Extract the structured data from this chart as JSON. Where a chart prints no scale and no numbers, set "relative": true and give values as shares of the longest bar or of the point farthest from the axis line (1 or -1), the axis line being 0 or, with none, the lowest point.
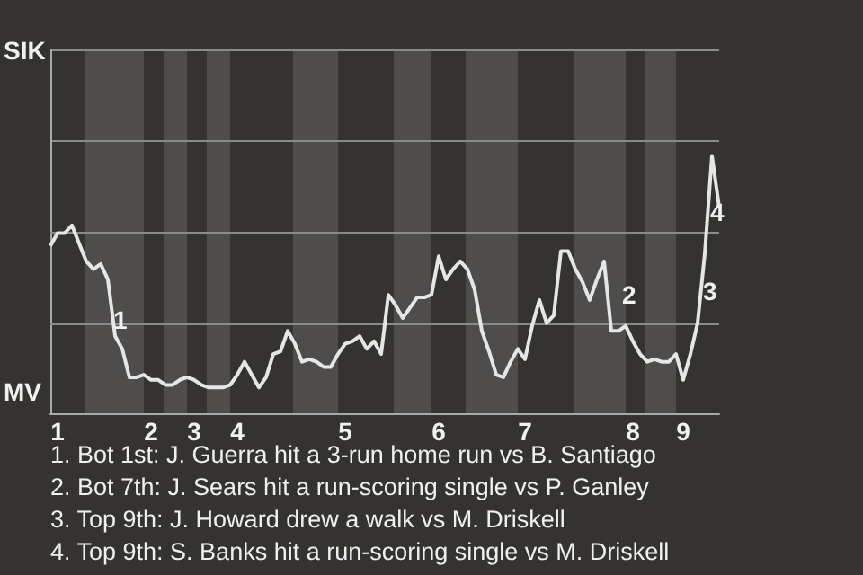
{
  "chart_data": {
    "type": "line",
    "relative": true,
    "categories": [
      null,
      "1",
      null,
      null,
      null,
      null,
      null,
      null,
      null,
      null,
      null,
      null,
      null,
      null,
      "2",
      null,
      null,
      null,
      null,
      null,
      "3",
      null,
      null,
      null,
      null,
      null,
      "4",
      null,
      null,
      null,
      null,
      null,
      null,
      null,
      null,
      null,
      null,
      null,
      null,
      null,
      null,
      "5",
      null,
      null,
      null,
      null,
      null,
      null,
      null,
      null,
      null,
      null,
      null,
      null,
      "6",
      null,
      null,
      null,
      null,
      null,
      null,
      null,
      null,
      null,
      null,
      null,
      "7",
      null,
      null,
      null,
      null,
      null,
      null,
      null,
      null,
      null,
      null,
      null,
      null,
      null,
      null,
      "8",
      null,
      null,
      null,
      null,
      null,
      null,
      "9",
      null,
      null,
      null,
      null,
      null
    ],
    "series": [
      {
        "color": "#e6e6e6",
        "values": [
          0.65,
          0.7,
          0.7,
          0.73,
          0.66,
          0.59,
          0.56,
          0.58,
          0.52,
          0.3,
          0.25,
          0.14,
          0.14,
          0.15,
          0.13,
          0.13,
          0.11,
          0.11,
          0.13,
          0.14,
          0.13,
          0.11,
          0.1,
          0.1,
          0.1,
          0.11,
          0.15,
          0.2,
          0.15,
          0.1,
          0.14,
          0.23,
          0.24,
          0.32,
          0.27,
          0.2,
          0.21,
          0.2,
          0.18,
          0.18,
          0.23,
          0.27,
          0.28,
          0.3,
          0.25,
          0.28,
          0.23,
          0.46,
          0.42,
          0.37,
          0.41,
          0.45,
          0.45,
          0.46,
          0.61,
          0.52,
          0.56,
          0.59,
          0.56,
          0.48,
          0.32,
          0.24,
          0.15,
          0.14,
          0.2,
          0.25,
          0.21,
          0.34,
          0.44,
          0.35,
          0.38,
          0.63,
          0.63,
          0.56,
          0.51,
          0.44,
          0.52,
          0.59,
          0.32,
          0.32,
          0.34,
          0.28,
          0.23,
          0.2,
          0.21,
          0.2,
          0.2,
          0.23,
          0.13,
          0.23,
          0.35,
          0.62,
          1,
          0.8
        ]
      }
    ],
    "ref_lines": [
      {
        "axis": "y",
        "value": 0.35,
        "color": "#8a8a88"
      },
      {
        "axis": "y",
        "value": 0.7,
        "color": "#8a8a88"
      }
    ],
    "annotations": [
      "SIK",
      "MV",
      "1",
      "2",
      "3",
      "4",
      "1. Bot 1st: J. Guerra hit a 3-run home run vs B. Santiago",
      "2. Bot 7th: J. Sears hit a run-scoring single vs P. Ganley",
      "3. Top 9th: J. Howard drew a walk vs M. Driskell",
      "4. Top 9th: S. Banks hit a run-scoring single vs M. Driskell"
    ]
  }
}
